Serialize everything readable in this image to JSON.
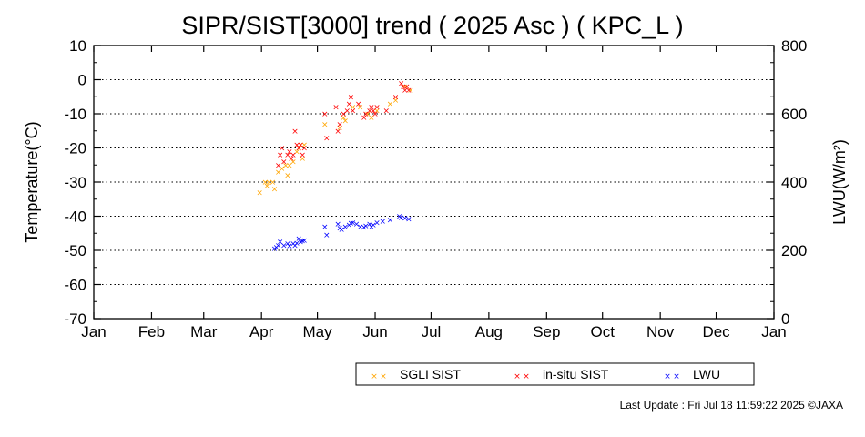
{
  "chart_data": {
    "type": "scatter",
    "title": "SIPR/SIST[3000] trend ( 2025 Asc ) ( KPC_L )",
    "ylabel": "Temperature(°C)",
    "ylabel_right": "LWU(W/m²)",
    "ylim": [
      -70,
      10
    ],
    "ylim_right": [
      0,
      800
    ],
    "y_ticks": [
      10,
      0,
      -10,
      -20,
      -30,
      -40,
      -50,
      -60,
      -70
    ],
    "y_ticks_right": [
      800,
      600,
      400,
      200,
      0
    ],
    "x_ticks": [
      "Jan",
      "Feb",
      "Mar",
      "Apr",
      "May",
      "Jun",
      "Jul",
      "Aug",
      "Sep",
      "Oct",
      "Nov",
      "Dec",
      "Jan"
    ],
    "x_unit_note": "x values are day-of-year 2025 (Jan 1 = 1)",
    "grid": true,
    "legend_position": "bottom-right",
    "series": [
      {
        "name": "SGLI SIST",
        "axis": "left",
        "color": "#ffa500",
        "points": [
          [
            90,
            -33
          ],
          [
            93,
            -30
          ],
          [
            94,
            -31
          ],
          [
            95,
            -30
          ],
          [
            97,
            -30
          ],
          [
            98,
            -32
          ],
          [
            100,
            -27
          ],
          [
            102,
            -26
          ],
          [
            104,
            -25
          ],
          [
            105,
            -28
          ],
          [
            106,
            -25
          ],
          [
            108,
            -24
          ],
          [
            110,
            -21
          ],
          [
            111,
            -20
          ],
          [
            112,
            -19
          ],
          [
            113,
            -23
          ],
          [
            114,
            -19
          ],
          [
            125,
            -13
          ],
          [
            133,
            -14
          ],
          [
            135,
            -11
          ],
          [
            136,
            -12
          ],
          [
            140,
            -8
          ],
          [
            144,
            -8
          ],
          [
            148,
            -10
          ],
          [
            150,
            -11
          ],
          [
            153,
            -9
          ],
          [
            160,
            -7
          ],
          [
            163,
            -6
          ],
          [
            168,
            -2
          ],
          [
            171,
            -3
          ]
        ]
      },
      {
        "name": "in-situ SIST",
        "axis": "left",
        "color": "#ff0000",
        "points": [
          [
            100,
            -25
          ],
          [
            101,
            -22
          ],
          [
            102,
            -20
          ],
          [
            103,
            -24
          ],
          [
            105,
            -22
          ],
          [
            106,
            -21
          ],
          [
            107,
            -23
          ],
          [
            108,
            -22
          ],
          [
            109,
            -15
          ],
          [
            110,
            -19
          ],
          [
            111,
            -20
          ],
          [
            112,
            -19
          ],
          [
            113,
            -22
          ],
          [
            114,
            -20
          ],
          [
            125,
            -10
          ],
          [
            126,
            -17
          ],
          [
            131,
            -8
          ],
          [
            132,
            -15
          ],
          [
            133,
            -13
          ],
          [
            135,
            -10
          ],
          [
            137,
            -9
          ],
          [
            138,
            -7
          ],
          [
            139,
            -5
          ],
          [
            140,
            -9
          ],
          [
            143,
            -7
          ],
          [
            146,
            -11
          ],
          [
            147,
            -10
          ],
          [
            149,
            -9
          ],
          [
            150,
            -8
          ],
          [
            151,
            -9
          ],
          [
            152,
            -10
          ],
          [
            153,
            -8
          ],
          [
            158,
            -9
          ],
          [
            163,
            -5
          ],
          [
            166,
            -1
          ],
          [
            167,
            -2
          ],
          [
            168,
            -3
          ],
          [
            169,
            -2
          ],
          [
            170,
            -3
          ]
        ]
      },
      {
        "name": "LWU",
        "axis": "right",
        "color": "#0000ff",
        "points": [
          [
            98,
            205
          ],
          [
            99,
            210
          ],
          [
            100,
            215
          ],
          [
            101,
            225
          ],
          [
            103,
            215
          ],
          [
            105,
            220
          ],
          [
            106,
            213
          ],
          [
            108,
            220
          ],
          [
            109,
            215
          ],
          [
            110,
            222
          ],
          [
            111,
            235
          ],
          [
            112,
            225
          ],
          [
            113,
            228
          ],
          [
            114,
            230
          ],
          [
            125,
            270
          ],
          [
            126,
            245
          ],
          [
            132,
            278
          ],
          [
            133,
            265
          ],
          [
            134,
            262
          ],
          [
            136,
            270
          ],
          [
            138,
            275
          ],
          [
            139,
            280
          ],
          [
            140,
            282
          ],
          [
            142,
            278
          ],
          [
            144,
            270
          ],
          [
            146,
            268
          ],
          [
            147,
            272
          ],
          [
            149,
            278
          ],
          [
            150,
            270
          ],
          [
            151,
            275
          ],
          [
            153,
            282
          ],
          [
            156,
            285
          ],
          [
            160,
            290
          ],
          [
            165,
            300
          ],
          [
            166,
            296
          ],
          [
            168,
            295
          ],
          [
            170,
            292
          ]
        ]
      }
    ]
  },
  "footer": {
    "last_update": "Last Update : Fri Jul 18 11:59:22 2025  ©JAXA"
  }
}
